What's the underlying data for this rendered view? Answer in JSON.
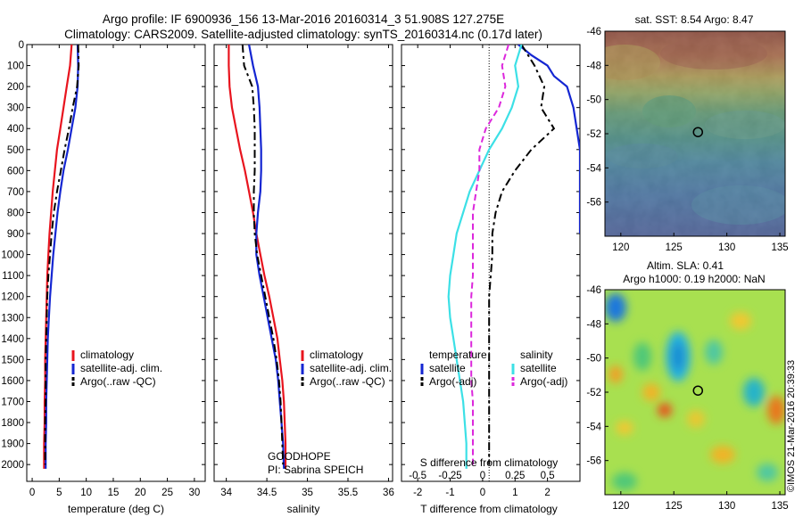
{
  "title": {
    "line1": "Argo profile: IF 6900936_156 13-Mar-2016 20160314_3 51.908S 127.275E",
    "line2": "Climatology: CARS2009. Satellite-adjusted climatology: synTS_20160314.nc (0.17d later)"
  },
  "colors": {
    "red": "#e8141e",
    "blue": "#1426d2",
    "black": "#000000",
    "cyan": "#3ce0e6",
    "magenta": "#dc28dc"
  },
  "chart_data": [
    {
      "id": "temperature",
      "type": "line",
      "xlabel": "temperature (deg C)",
      "xlim": [
        -1,
        32
      ],
      "xticks": [
        0,
        5,
        10,
        15,
        20,
        25,
        30
      ],
      "ylim": [
        2080,
        0
      ],
      "yticks": [
        0,
        100,
        200,
        300,
        400,
        500,
        600,
        700,
        800,
        900,
        1000,
        1100,
        1200,
        1300,
        1400,
        1500,
        1600,
        1700,
        1800,
        1900,
        2000
      ],
      "legend": [
        "climatology",
        "satellite-adj. clim.",
        "Argo(..raw -QC)"
      ],
      "series": [
        {
          "name": "climatology",
          "color": "red",
          "dash": false,
          "x": [
            7.3,
            7.0,
            6.4,
            5.8,
            5.2,
            4.6,
            4.2,
            3.8,
            3.5,
            3.2,
            3.0,
            2.8,
            2.7,
            2.6,
            2.5,
            2.4,
            2.4,
            2.3,
            2.3,
            2.2,
            2.2
          ],
          "y": [
            0,
            100,
            200,
            300,
            400,
            500,
            600,
            700,
            800,
            900,
            1000,
            1100,
            1200,
            1300,
            1400,
            1500,
            1600,
            1700,
            1800,
            1900,
            2020
          ]
        },
        {
          "name": "satellite-adj. clim.",
          "color": "blue",
          "dash": false,
          "x": [
            8.4,
            8.5,
            8.4,
            8.0,
            7.3,
            6.6,
            5.8,
            5.2,
            4.7,
            4.3,
            3.9,
            3.6,
            3.3,
            3.1,
            2.9,
            2.8,
            2.7,
            2.6,
            2.6,
            2.5,
            2.5
          ],
          "y": [
            0,
            100,
            200,
            300,
            400,
            500,
            600,
            700,
            800,
            900,
            1000,
            1100,
            1200,
            1300,
            1400,
            1500,
            1600,
            1700,
            1800,
            1900,
            2020
          ]
        },
        {
          "name": "Argo(..raw -QC)",
          "color": "black",
          "dash": true,
          "x": [
            8.5,
            8.6,
            8.3,
            7.5,
            6.8,
            6.0,
            5.3,
            4.6,
            4.0,
            3.6,
            3.3,
            3.0,
            2.8,
            2.7,
            2.6,
            2.5,
            2.5,
            2.5,
            2.4,
            2.4,
            2.4
          ],
          "y": [
            0,
            100,
            200,
            300,
            400,
            500,
            600,
            700,
            800,
            900,
            1000,
            1100,
            1200,
            1300,
            1400,
            1500,
            1600,
            1700,
            1800,
            1900,
            2000
          ]
        }
      ]
    },
    {
      "id": "salinity",
      "type": "line",
      "xlabel": "salinity",
      "xlim": [
        33.85,
        36.05
      ],
      "xticks": [
        34,
        34.5,
        35,
        35.5,
        36
      ],
      "ylim": [
        2080,
        0
      ],
      "legend": [
        "climatology",
        "satellite-adj. clim.",
        "Argo(..raw -QC)"
      ],
      "annotations": [
        "GOODHOPE",
        "PI: Sabrina SPEICH"
      ],
      "series": [
        {
          "name": "climatology",
          "color": "red",
          "dash": false,
          "x": [
            34.03,
            34.03,
            34.04,
            34.07,
            34.12,
            34.17,
            34.23,
            34.28,
            34.33,
            34.37,
            34.42,
            34.47,
            34.53,
            34.58,
            34.63,
            34.66,
            34.69,
            34.71,
            34.72,
            34.73,
            34.73
          ],
          "y": [
            0,
            100,
            200,
            300,
            400,
            500,
            600,
            700,
            800,
            900,
            1000,
            1100,
            1200,
            1300,
            1400,
            1500,
            1600,
            1700,
            1800,
            1900,
            2020
          ]
        },
        {
          "name": "satellite-adj. clim.",
          "color": "blue",
          "dash": false,
          "x": [
            34.28,
            34.33,
            34.39,
            34.41,
            34.42,
            34.43,
            34.43,
            34.42,
            34.39,
            34.37,
            34.37,
            34.41,
            34.46,
            34.51,
            34.56,
            34.61,
            34.64,
            34.66,
            34.68,
            34.7,
            34.71
          ],
          "y": [
            0,
            100,
            200,
            300,
            400,
            500,
            600,
            700,
            800,
            900,
            1000,
            1100,
            1200,
            1300,
            1400,
            1500,
            1600,
            1700,
            1800,
            1900,
            2020
          ]
        },
        {
          "name": "Argo(..raw -QC)",
          "color": "black",
          "dash": true,
          "x": [
            34.2,
            34.22,
            34.32,
            34.34,
            34.35,
            34.35,
            34.35,
            34.34,
            34.34,
            34.35,
            34.38,
            34.43,
            34.48,
            34.53,
            34.58,
            34.62,
            34.65,
            34.67,
            34.68,
            34.69,
            34.7
          ],
          "y": [
            0,
            100,
            200,
            300,
            400,
            500,
            600,
            700,
            800,
            900,
            1000,
            1100,
            1200,
            1300,
            1400,
            1500,
            1600,
            1700,
            1800,
            1900,
            2000
          ]
        }
      ]
    },
    {
      "id": "difference",
      "type": "line",
      "xlabel": "T difference from climatology",
      "xlabel_top": "S difference from climatology",
      "xlim": [
        -2.5,
        3.0
      ],
      "xticks": [
        -2,
        -1,
        0,
        1,
        2
      ],
      "xticks_top_labels": [
        "-0.5",
        "-0.25",
        "0",
        "0.25",
        "0.5"
      ],
      "xticks_top_values": [
        -2,
        -1,
        0,
        1,
        2
      ],
      "ylim": [
        2080,
        0
      ],
      "legend_titles": [
        "temperature",
        "salinity"
      ],
      "legend": [
        "satellite",
        "Argo(-adj)",
        "satellite",
        "Argo(-adj)"
      ],
      "series": [
        {
          "name": "satellite",
          "group": "temperature",
          "color": "blue",
          "dash": false,
          "x": [
            1.1,
            1.5,
            2.0,
            2.2,
            2.6,
            2.8,
            3.0,
            3.0,
            3.0,
            3.0,
            3.0
          ],
          "y": [
            0,
            50,
            100,
            150,
            200,
            300,
            500,
            600,
            700,
            800,
            900
          ]
        },
        {
          "name": "Argo(-adj)",
          "group": "temperature",
          "color": "black",
          "dash": true,
          "x": [
            1.2,
            1.6,
            1.9,
            1.8,
            2.2,
            1.5,
            1.0,
            0.6,
            0.4,
            0.3,
            0.3,
            0.25,
            0.2,
            0.2,
            0.2,
            0.2,
            0.2,
            0.2,
            0.2,
            0.2,
            0.2
          ],
          "y": [
            0,
            100,
            200,
            300,
            400,
            500,
            600,
            700,
            800,
            900,
            1000,
            1100,
            1200,
            1300,
            1400,
            1500,
            1600,
            1700,
            1800,
            1900,
            2000
          ]
        },
        {
          "name": "satellite",
          "group": "salinity",
          "color": "cyan",
          "dash": false,
          "x": [
            1.2,
            1.0,
            1.1,
            0.9,
            0.6,
            0.2,
            -0.1,
            -0.4,
            -0.6,
            -0.8,
            -0.9,
            -1.0,
            -1.05,
            -1.0,
            -0.9,
            -0.8,
            -0.7,
            -0.6,
            -0.55,
            -0.5,
            -0.5
          ],
          "y": [
            0,
            100,
            200,
            300,
            400,
            500,
            600,
            700,
            800,
            900,
            1000,
            1100,
            1200,
            1300,
            1400,
            1500,
            1600,
            1700,
            1800,
            1900,
            2020
          ]
        },
        {
          "name": "Argo(-adj)",
          "group": "salinity",
          "color": "magenta",
          "dash": true,
          "x": [
            0.8,
            0.6,
            0.7,
            0.5,
            0.1,
            -0.1,
            -0.1,
            -0.2,
            -0.3,
            -0.3,
            -0.3,
            -0.3,
            -0.35,
            -0.35,
            -0.35,
            -0.35,
            -0.35,
            -0.3,
            -0.3,
            -0.3,
            -0.3
          ],
          "y": [
            0,
            100,
            200,
            300,
            400,
            500,
            600,
            700,
            800,
            900,
            1000,
            1100,
            1200,
            1300,
            1400,
            1500,
            1600,
            1700,
            1800,
            1900,
            2000
          ]
        }
      ]
    },
    {
      "id": "sst_map",
      "type": "heatmap",
      "title": "sat. SST: 8.54 Argo: 8.47",
      "xlim": [
        118.5,
        135.5
      ],
      "ylim": [
        -58,
        -46
      ],
      "xticks": [
        120,
        125,
        130,
        135
      ],
      "yticks": [
        -46,
        -48,
        -50,
        -52,
        -54,
        -56
      ],
      "marker": {
        "lon": 127.275,
        "lat": -51.908
      }
    },
    {
      "id": "sla_map",
      "type": "heatmap",
      "title": "Altim. SLA: 0.41",
      "subtitle": "Argo h1000: 0.19 h2000: NaN",
      "xlim": [
        118.5,
        135.5
      ],
      "ylim": [
        -58,
        -46
      ],
      "xticks": [
        120,
        125,
        130,
        135
      ],
      "yticks": [
        -46,
        -48,
        -50,
        -52,
        -54,
        -56
      ],
      "marker": {
        "lon": 127.275,
        "lat": -51.908
      }
    }
  ],
  "credit": "©IMOS 21-Mar-2016 20:39:33"
}
